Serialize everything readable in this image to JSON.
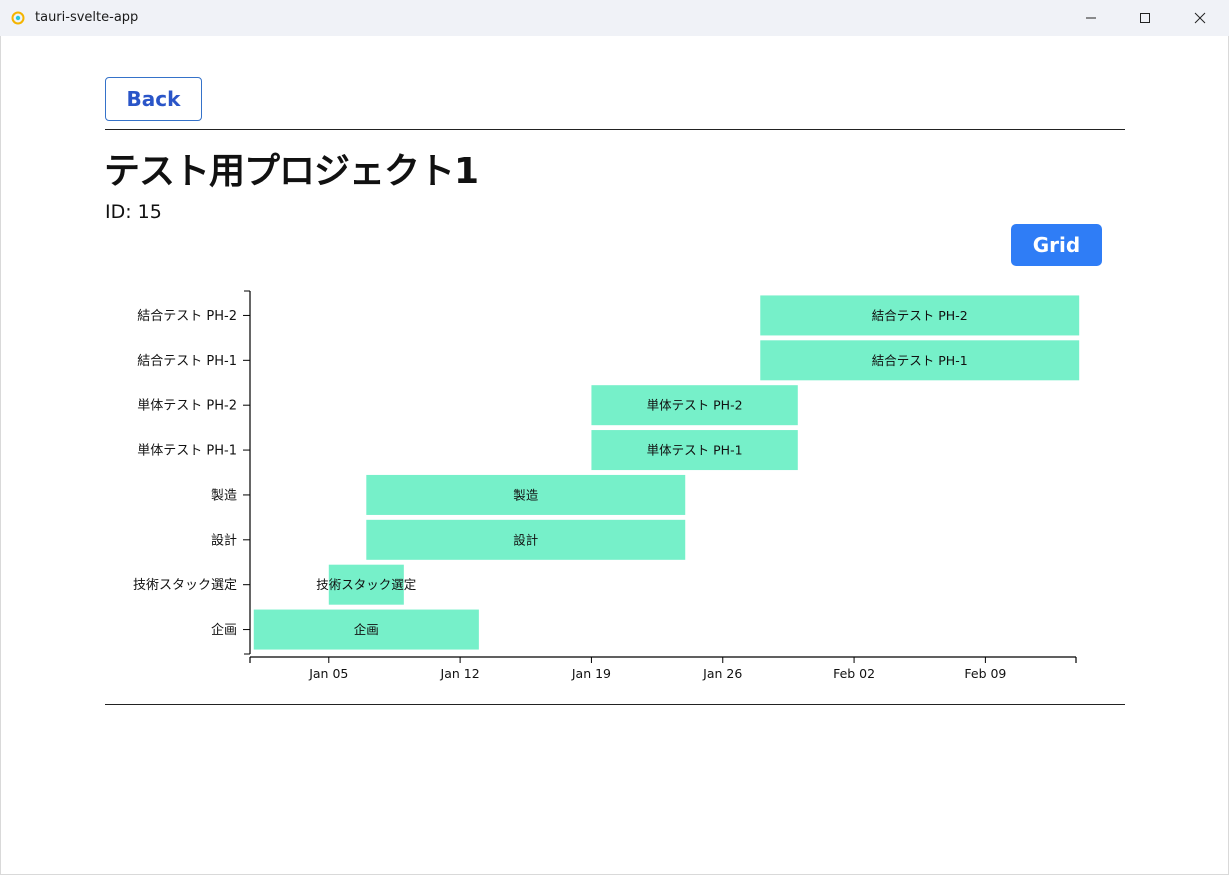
{
  "window": {
    "title": "tauri-svelte-app",
    "controls": [
      "minimize-icon",
      "maximize-icon",
      "close-icon"
    ]
  },
  "nav": {
    "back_label": "Back"
  },
  "project": {
    "title": "テスト用プロジェクト1",
    "id_text": "ID: 15"
  },
  "toolbar": {
    "grid_label": "Grid"
  },
  "colors": {
    "bar": "#76f0c9",
    "accent": "#2f7df6",
    "back_border": "#3572c9"
  },
  "chart_data": {
    "type": "gantt",
    "x_axis": {
      "ticks": [
        "Jan 05",
        "Jan 12",
        "Jan 19",
        "Jan 26",
        "Feb 02",
        "Feb 09"
      ]
    },
    "tasks": [
      {
        "name": "企画",
        "start": "Jan 01",
        "end": "Jan 13"
      },
      {
        "name": "技術スタック選定",
        "start": "Jan 05",
        "end": "Jan 09"
      },
      {
        "name": "設計",
        "start": "Jan 07",
        "end": "Jan 24"
      },
      {
        "name": "製造",
        "start": "Jan 07",
        "end": "Jan 24"
      },
      {
        "name": "単体テスト PH-1",
        "start": "Jan 19",
        "end": "Jan 30"
      },
      {
        "name": "単体テスト PH-2",
        "start": "Jan 19",
        "end": "Jan 30"
      },
      {
        "name": "結合テスト PH-1",
        "start": "Jan 28",
        "end": "Feb 14"
      },
      {
        "name": "結合テスト PH-2",
        "start": "Jan 28",
        "end": "Feb 14"
      }
    ]
  }
}
